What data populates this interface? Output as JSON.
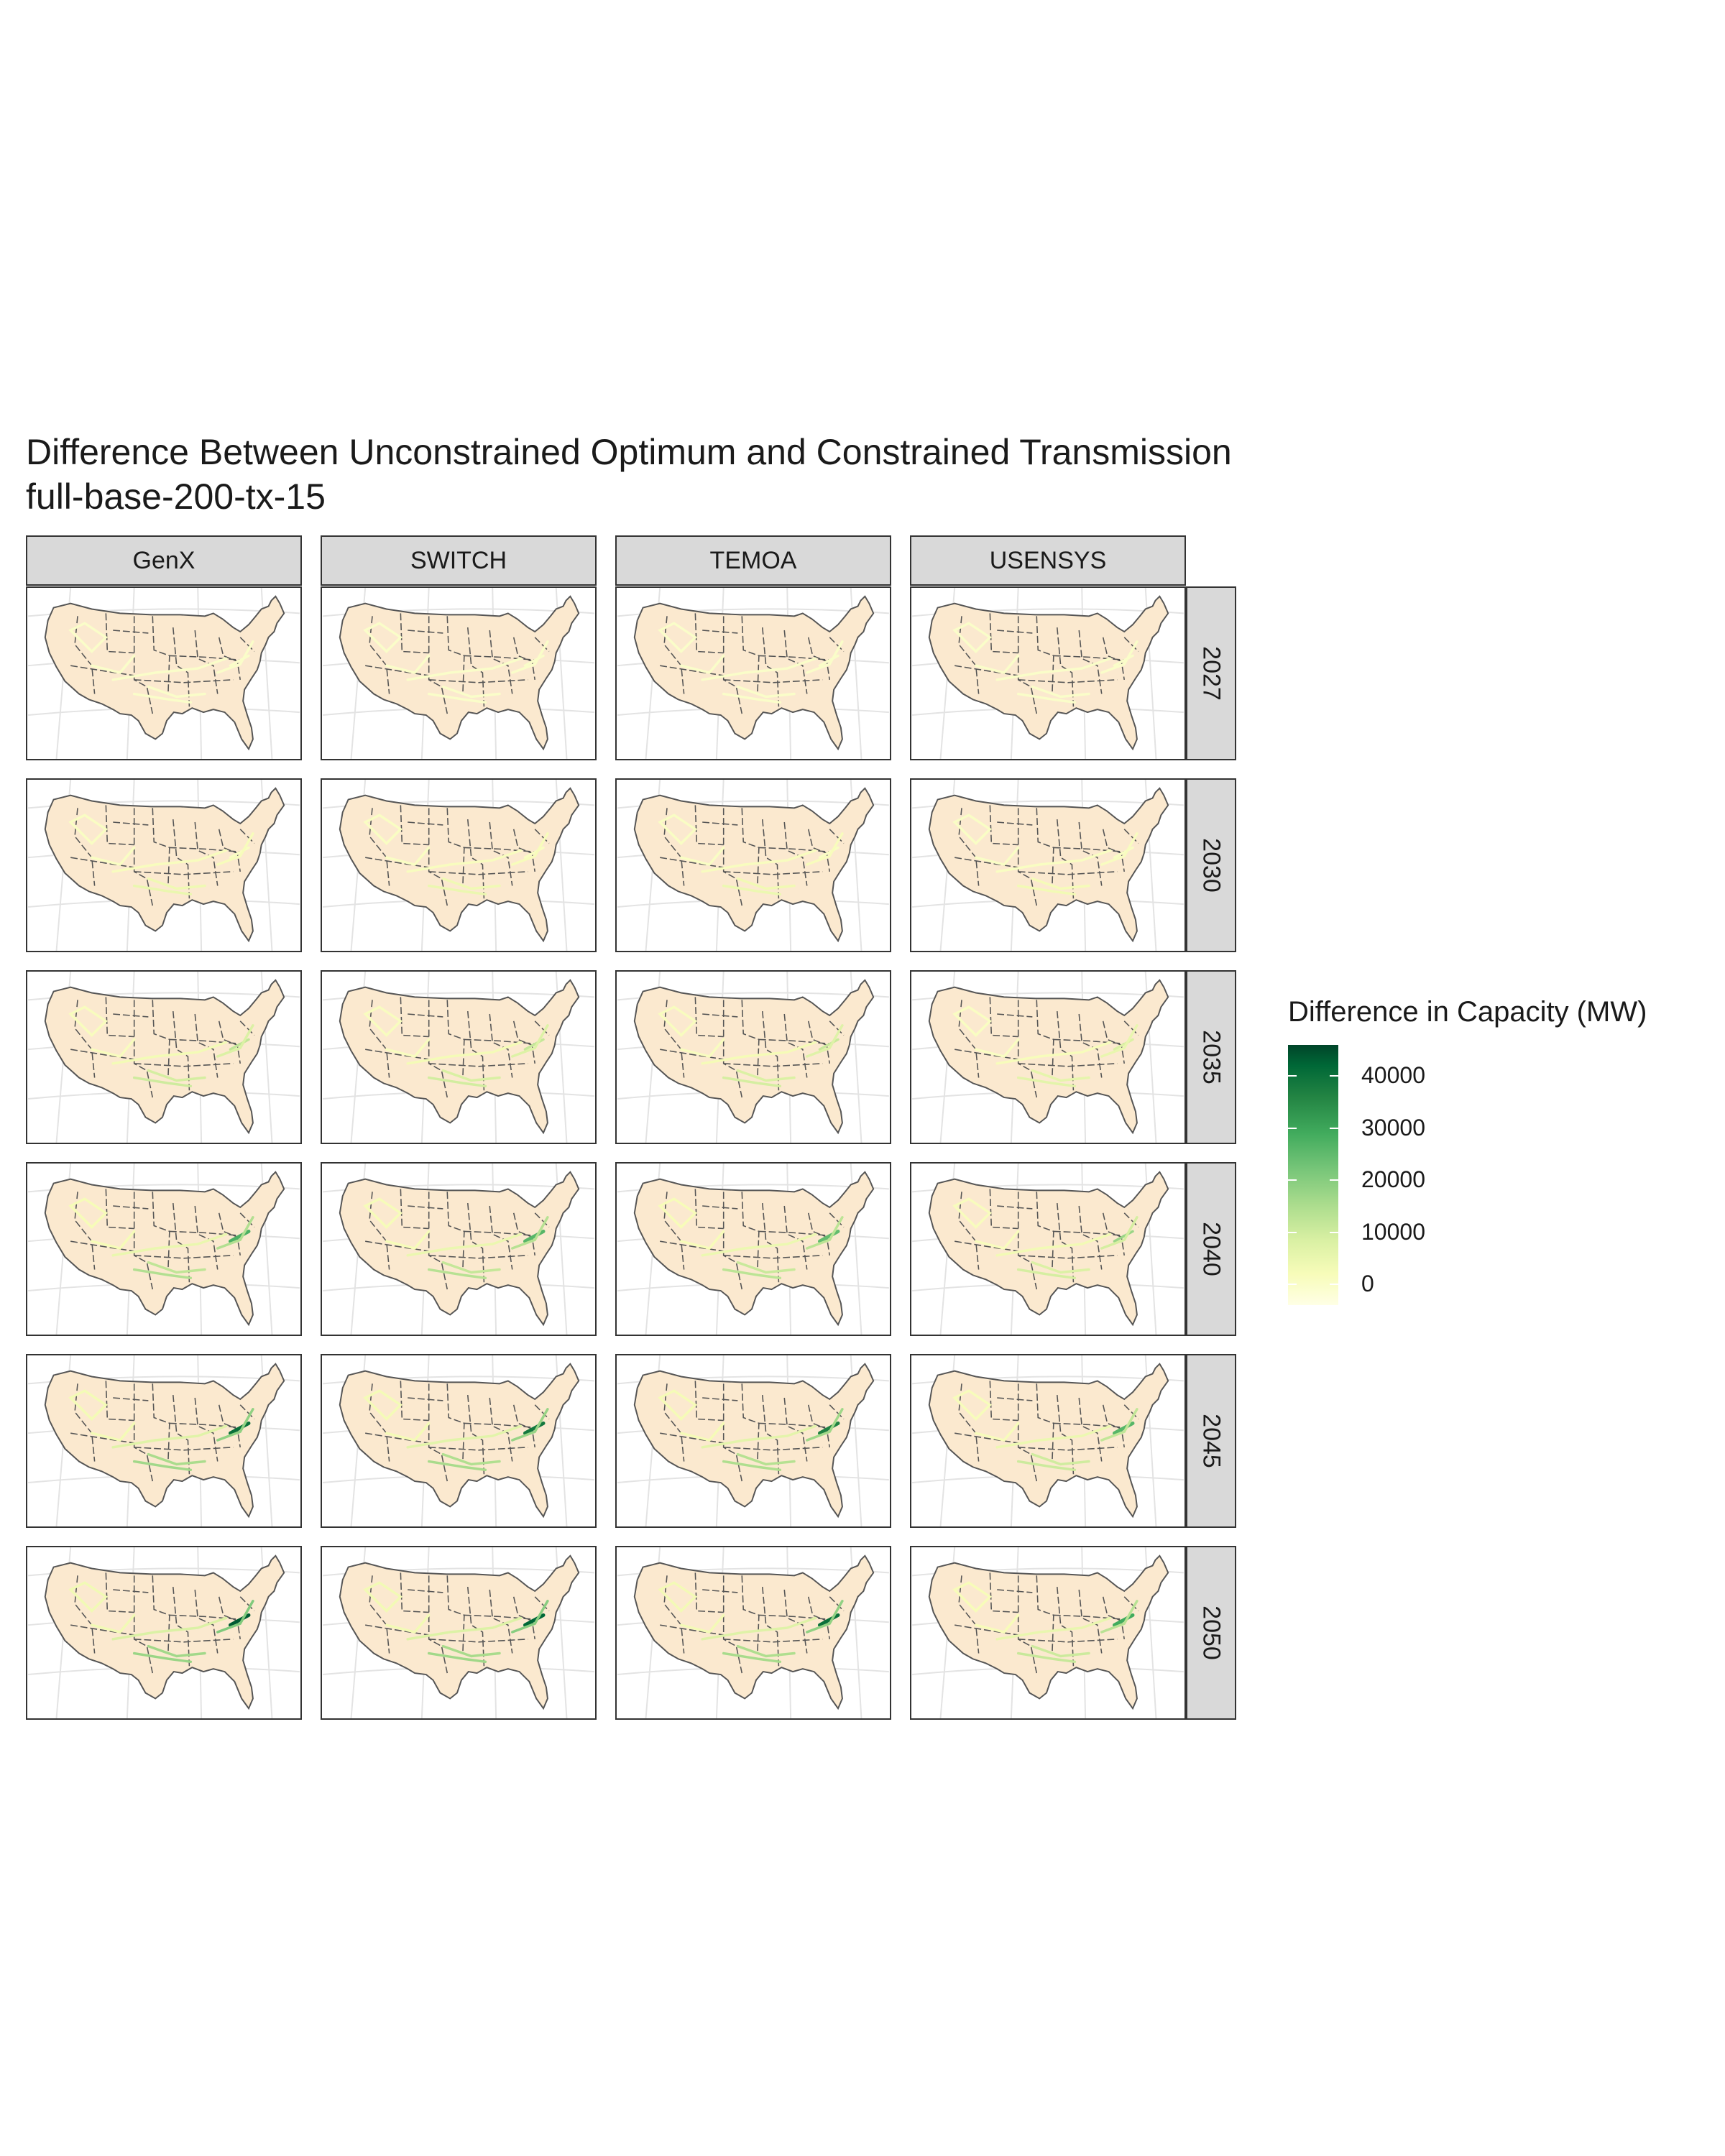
{
  "title": "Difference Between Unconstrained Optimum and Constrained Transmission",
  "subtitle": "full-base-200-tx-15",
  "models": [
    "GenX",
    "SWITCH",
    "TEMOA",
    "USENSYS"
  ],
  "years": [
    "2027",
    "2030",
    "2035",
    "2040",
    "2045",
    "2050"
  ],
  "legend": {
    "title": "Difference in Capacity (MW)",
    "ticks": [
      "40000",
      "30000",
      "20000",
      "10000",
      "0"
    ],
    "tick_values": [
      40000,
      30000,
      20000,
      10000,
      0
    ],
    "range": [
      -4000,
      46000
    ],
    "palette": [
      "#ffffe5",
      "#f7fcb9",
      "#d9f0a3",
      "#addd8e",
      "#78c679",
      "#41ab5d",
      "#238443",
      "#006837",
      "#004529"
    ]
  },
  "colors": {
    "land": "#fbe9cf",
    "border": "#555555",
    "graticule": "#e3e3e3",
    "strip": "#d9d9d9"
  },
  "corridor_values": {
    "NE_corridor": [
      0,
      1000,
      12000,
      26000,
      38000,
      42000
    ],
    "MidAtlantic": [
      0,
      2000,
      8000,
      14000,
      18000,
      20000
    ],
    "Southeast_TX": [
      0,
      5000,
      10000,
      14000,
      16000,
      17000
    ],
    "TX_Gulf": [
      0,
      4000,
      9000,
      12000,
      15000,
      16000
    ],
    "Plains_Midwest": [
      0,
      1500,
      3000,
      5000,
      7000,
      8000
    ],
    "West_loops": [
      0,
      800,
      1500,
      2500,
      3000,
      3500
    ]
  },
  "model_scale": {
    "GenX": 1.0,
    "SWITCH": 0.95,
    "TEMOA": 0.9,
    "USENSYS": 0.65
  }
}
